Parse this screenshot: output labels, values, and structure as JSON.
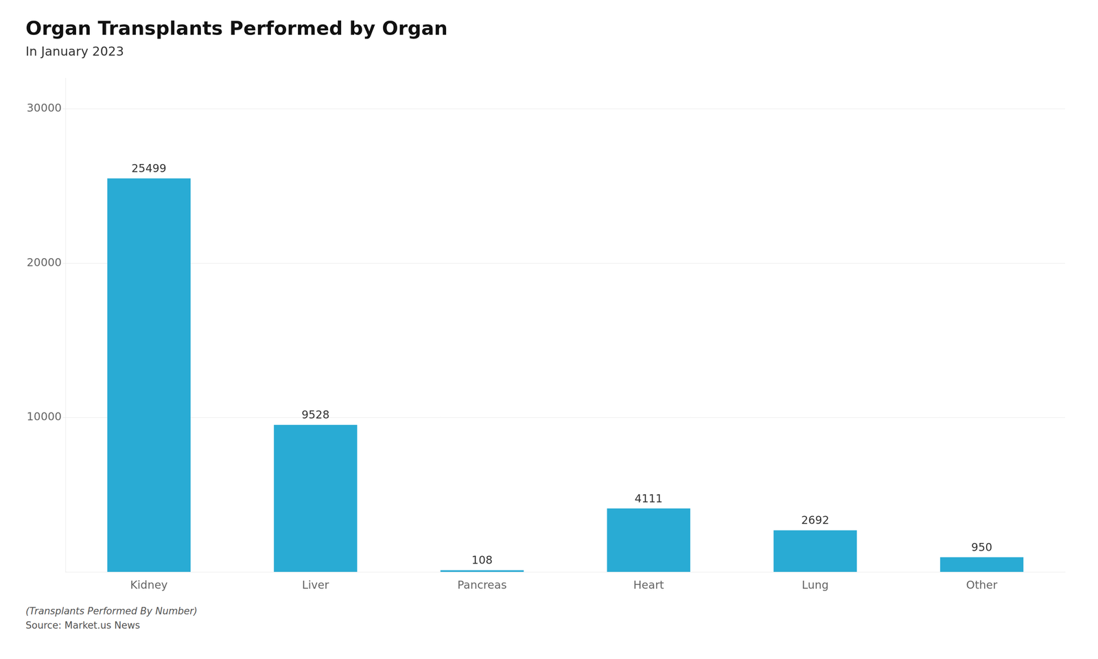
{
  "chart_data": {
    "type": "bar",
    "title": "Organ Transplants Performed by Organ",
    "subtitle": "In January 2023",
    "categories": [
      "Kidney",
      "Liver",
      "Pancreas",
      "Heart",
      "Lung",
      "Other"
    ],
    "values": [
      25499,
      9528,
      108,
      4111,
      2692,
      950
    ],
    "color": "#29ABD4",
    "ylim": [
      0,
      32000
    ],
    "yticks": [
      10000,
      20000,
      30000
    ],
    "grid": true,
    "data_labels": true,
    "annotations": [
      "(Transplants Performed By Number)",
      "Source: Market.us News"
    ]
  }
}
